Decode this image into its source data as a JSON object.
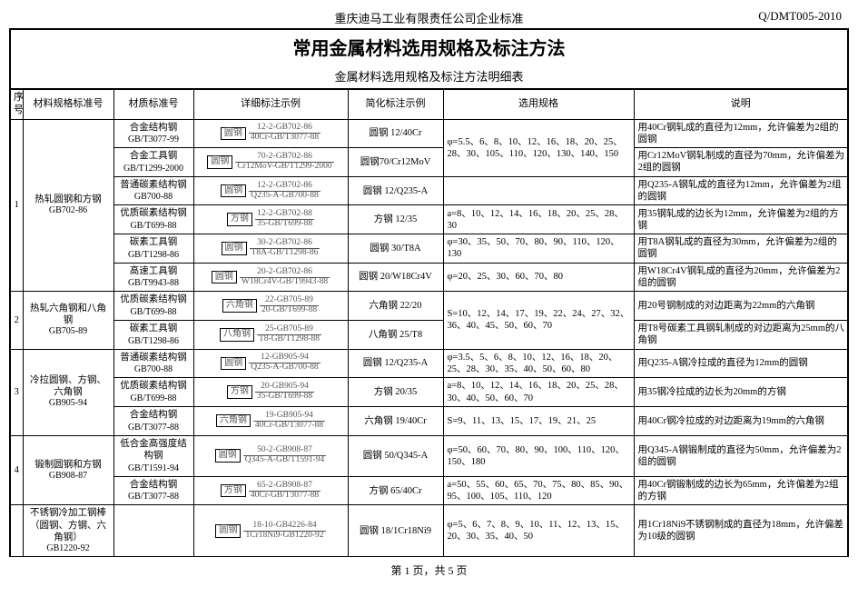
{
  "header": {
    "company": "重庆迪马工业有限责任公司企业标准",
    "doc_code": "Q/DMT005-2010",
    "title_main": "常用金属材料选用规格及标注方法",
    "title_sub": "金属材料选用规格及标注方法明细表"
  },
  "columns": {
    "seq": "序号",
    "spec": "材料规格标准号",
    "mat": "材质标准号",
    "detail": "详细标注示例",
    "simple": "简化标注示例",
    "use": "选用规格",
    "note": "说明"
  },
  "groups": [
    {
      "seq": "1",
      "spec_name": "热轧圆钢和方钢",
      "spec_code": "GB702-86",
      "rows": [
        {
          "mat_name": "合金结构钢",
          "mat_code": "GB/T3077-99",
          "shape": "圆钢",
          "frac_top": "12-2-GB702-86",
          "frac_bot": "40Cr-GB/T3077-88",
          "simple": "圆钢 12/40Cr",
          "use_rowspan": 2,
          "use": "φ=5.5、6、8、10、12、16、18、20、25、28、30、105、110、120、130、140、150",
          "note": "用40Cr钢轧成的直径为12mm，允许偏差为2组的圆钢"
        },
        {
          "mat_name": "合金工具钢",
          "mat_code": "GB/T1299-2000",
          "shape": "圆钢",
          "frac_top": "70-2-GB702-86",
          "frac_bot": "Cr12MoV-GB/T1299-2000",
          "simple": "圆钢70/Cr12MoV",
          "note": "用Cr12MoV钢轧制成的直径为70mm，允许偏差为2组的圆钢"
        },
        {
          "mat_name": "普通碳素结构钢",
          "mat_code": "GB700-88",
          "shape": "圆钢",
          "frac_top": "12-2-GB702-86",
          "frac_bot": "Q235-A-GB700-88",
          "simple": "圆钢 12/Q235-A",
          "use_rowspan": 1,
          "use": "",
          "note": "用Q235-A钢轧成的直径为12mm，允许偏差为2组的圆钢"
        },
        {
          "mat_name": "优质碳素结构钢",
          "mat_code": "GB/T699-88",
          "shape": "方钢",
          "frac_top": "12-2-GB702-88",
          "frac_bot": "35-GB/T699-88",
          "simple": "方钢 12/35",
          "use": "a=8、10、12、14、16、18、20、25、28、30",
          "note": "用35钢轧成的边长为12mm，允许偏差为2组的方钢"
        },
        {
          "mat_name": "碳素工具钢",
          "mat_code": "GB/T1298-86",
          "shape": "圆钢",
          "frac_top": "30-2-GB702-86",
          "frac_bot": "T8A-GB/T1298-86",
          "simple": "圆钢 30/T8A",
          "use": "φ=30、35、50、70、80、90、110、120、130",
          "note": "用T8A钢轧成的直径为30mm，允许偏差为2组的圆钢"
        },
        {
          "mat_name": "高速工具钢",
          "mat_code": "GB/T9943-88",
          "shape": "圆钢",
          "frac_top": "20-2-GB702-86",
          "frac_bot": "W18Cr4V-GB/T9943-88",
          "simple": "圆钢 20/W18Cr4V",
          "use": "φ=20、25、30、60、70、80",
          "note": "用W18Cr4V钢轧成的直径为20mm，允许偏差为2组的圆钢"
        }
      ]
    },
    {
      "seq": "2",
      "spec_name": "热轧六角钢和八角钢",
      "spec_code": "GB705-89",
      "rows": [
        {
          "mat_name": "优质碳素结构钢",
          "mat_code": "GB/T699-88",
          "shape": "六角钢",
          "frac_top": "22-GB705-89",
          "frac_bot": "20-GB/T699-88",
          "simple": "六角钢 22/20",
          "use_rowspan": 2,
          "use": "S=10、12、14、17、19、22、24、27、32、36、40、45、50、60、70",
          "note": "用20号钢制成的对边距离为22mm的六角钢"
        },
        {
          "mat_name": "碳素工具钢",
          "mat_code": "GB/T1298-86",
          "shape": "八角钢",
          "frac_top": "25-GB705-89",
          "frac_bot": "T8-GB/T1298-88",
          "simple": "八角钢 25/T8",
          "note": "用T8号碳素工具钢轧制成的对边距离为25mm的八角钢"
        }
      ]
    },
    {
      "seq": "3",
      "spec_name": "冷拉圆钢、方钢、六角钢",
      "spec_code": "GB905-94",
      "rows": [
        {
          "mat_name": "普通碳素结构钢",
          "mat_code": "GB700-88",
          "shape": "圆钢",
          "frac_top": "12-GB905-94",
          "frac_bot": "Q235-A-GB700-88",
          "simple": "圆钢 12/Q235-A",
          "use": "φ=3.5、5、6、8、10、12、16、18、20、25、28、30、35、40、50、60、80",
          "note": "用Q235-A钢冷拉成的直径为12mm的圆钢"
        },
        {
          "mat_name": "优质碳素结构钢",
          "mat_code": "GB/T699-88",
          "shape": "方钢",
          "frac_top": "20-GB905-94",
          "frac_bot": "35-GB/T699-88",
          "simple": "方钢 20/35",
          "use": "a=8、10、12、14、16、18、20、25、28、30、40、50、60、70",
          "note": "用35钢冷拉成的边长为20mm的方钢"
        },
        {
          "mat_name": "合金结构钢",
          "mat_code": "GB/T3077-88",
          "shape": "六角钢",
          "frac_top": "19-GB905-94",
          "frac_bot": "40Cr-GB/T3077-88",
          "simple": "六角钢 19/40Cr",
          "use": "S=9、11、13、15、17、19、21、25",
          "note": "用40Cr钢冷拉成的对边距离为19mm的六角钢"
        }
      ]
    },
    {
      "seq": "4",
      "spec_name": "锻制圆钢和方钢",
      "spec_code": "GB908-87",
      "rows": [
        {
          "mat_name": "低合金高强度结构钢",
          "mat_code": "GB/T1591-94",
          "shape": "圆钢",
          "frac_top": "50-2-GB908-87",
          "frac_bot": "Q345-A-GB/T1591-94",
          "simple": "圆钢 50/Q345-A",
          "use": "φ=50、60、70、80、90、100、110、120、150、180",
          "note": "用Q345-A钢锻制成的直径为50mm，允许偏差为2组的圆钢"
        },
        {
          "mat_name": "合金结构钢",
          "mat_code": "GB/T3077-88",
          "shape": "方钢",
          "frac_top": "65-2-GB908-87",
          "frac_bot": "40Cr-GB/T3077-88",
          "simple": "方钢 65/40Cr",
          "use": "a=50、55、60、65、70、75、80、85、90、95、100、105、110、120",
          "note": "用40Cr钢锻制成的边长为65mm，允许偏差为2组的方钢"
        }
      ]
    },
    {
      "seq": "",
      "spec_name": "不锈钢冷加工钢棒（圆钢、方钢、六角钢）",
      "spec_code": "GB1220-92",
      "rows": [
        {
          "mat_name": "",
          "mat_code": "",
          "shape": "圆钢",
          "frac_top": "18-10-GB4226-84",
          "frac_bot": "1Cr18Ni9-GB1220-92",
          "simple": "圆钢 18/1Cr18Ni9",
          "use": "φ=5、6、7、8、9、10、11、12、13、15、20、30、35、40、50",
          "note": "用1Cr18Ni9不锈钢制成的直径为18mm，允许偏差为10级的圆钢"
        }
      ]
    }
  ],
  "footer": {
    "page_text": "第 1 页，共 5 页"
  }
}
